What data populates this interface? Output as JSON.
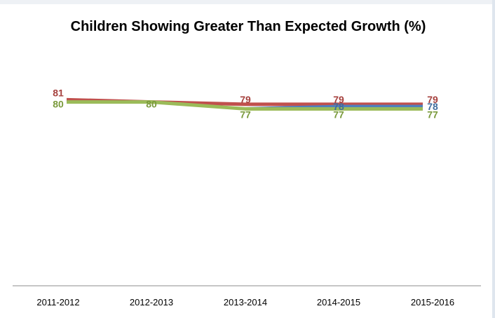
{
  "chart_data": {
    "type": "line",
    "title": "Children Showing Greater Than Expected Growth (%)",
    "categories": [
      "2011-2012",
      "2012-2013",
      "2013-2014",
      "2014-2015",
      "2015-2016"
    ],
    "series": [
      {
        "color": "#c0504d",
        "values": [
          81,
          80,
          79,
          79,
          79
        ],
        "labels": [
          "81",
          "",
          "79",
          "79",
          "79"
        ]
      },
      {
        "color": "#4f81bd",
        "values": [
          null,
          null,
          77,
          78,
          78
        ],
        "labels": [
          "",
          "",
          "",
          "78",
          "78"
        ]
      },
      {
        "color": "#9bbb59",
        "values": [
          80,
          80,
          77,
          77,
          77
        ],
        "labels": [
          "80",
          "80",
          "77",
          "77",
          "77"
        ]
      }
    ],
    "ylim": [
      0,
      100
    ],
    "grid": false,
    "legend": "none"
  }
}
